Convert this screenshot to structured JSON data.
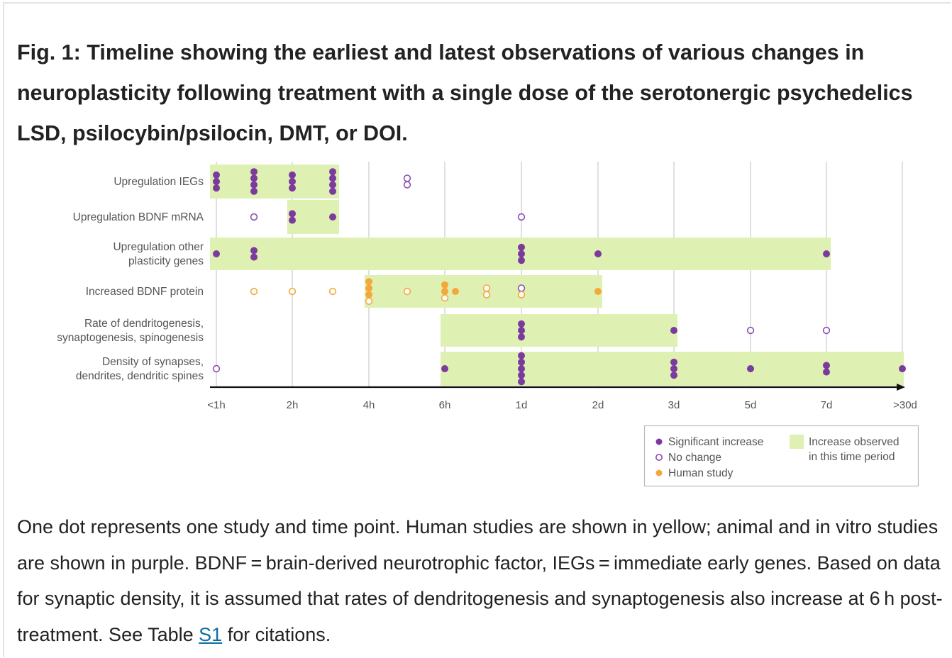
{
  "figure": {
    "title": "Fig. 1: Timeline showing the earliest and latest observations of various changes in neuroplasticity following treatment with a single dose of the serotonergic psychedelics LSD, psilocybin/psilocin, DMT, or DOI.",
    "caption_before_link": "One dot represents one study and time point. Human studies are shown in yellow; animal and in vitro studies are shown in purple. BDNF = brain-derived neurotrophic factor, IEGs = immediate early genes. Based on data for synaptic density, it is assumed that rates of dendritogenesis and synaptogenesis also increase at 6 h post-treatment. See Table ",
    "caption_link": "S1",
    "caption_after_link": " for citations."
  },
  "colors": {
    "significant": "#7b3a9e",
    "no_change": "#8a4fb5",
    "human": "#f5a83a",
    "band": "#def0b2",
    "grid": "#cccccc"
  },
  "chart_data": {
    "type": "scatter",
    "title": "",
    "xlabel": "",
    "ylabel": "",
    "x_ticks": [
      "<1h",
      "2h",
      "4h",
      "6h",
      "1d",
      "2d",
      "3d",
      "5d",
      "7d",
      ">30d"
    ],
    "rows": [
      {
        "label": [
          "Upregulation IEGs"
        ],
        "periods": [
          [
            "<1h",
            "3h"
          ]
        ],
        "points": [
          {
            "x": "<1h",
            "significant": 3
          },
          {
            "x": "1.5h",
            "significant": 4
          },
          {
            "x": "2h",
            "significant": 3
          },
          {
            "x": "3h",
            "significant": 4
          },
          {
            "x": "5h",
            "no_change": 2
          }
        ]
      },
      {
        "label": [
          "Upregulation BDNF mRNA"
        ],
        "periods": [
          [
            "2h",
            "3h"
          ]
        ],
        "points": [
          {
            "x": "1.5h",
            "no_change": 1
          },
          {
            "x": "2h",
            "significant": 2
          },
          {
            "x": "3h",
            "significant": 1
          },
          {
            "x": "1d",
            "no_change": 1
          }
        ]
      },
      {
        "label": [
          "Upregulation other",
          "plasticity genes"
        ],
        "periods": [
          [
            "<1h",
            "7d"
          ]
        ],
        "points": [
          {
            "x": "<1h",
            "significant": 1
          },
          {
            "x": "1.5h",
            "significant": 2
          },
          {
            "x": "1d",
            "significant": 3
          },
          {
            "x": "2d",
            "significant": 1
          },
          {
            "x": "7d",
            "significant": 1
          }
        ]
      },
      {
        "label": [
          "Increased BDNF protein"
        ],
        "periods": [
          [
            "4h",
            "2d"
          ]
        ],
        "points": [
          {
            "x": "1.5h",
            "human_no_change": 1
          },
          {
            "x": "2h",
            "human_no_change": 1
          },
          {
            "x": "3h",
            "human_no_change": 1
          },
          {
            "x": "4h",
            "human": 3,
            "human_no_change": 1
          },
          {
            "x": "5h",
            "human_no_change": 1
          },
          {
            "x": "6h",
            "human": 2,
            "human_no_change": 1
          },
          {
            "x": "7h",
            "human": 1
          },
          {
            "x": "10h",
            "human_no_change": 2
          },
          {
            "x": "1d",
            "no_change": 1,
            "human_no_change": 1
          },
          {
            "x": "2d",
            "human": 1
          }
        ]
      },
      {
        "label": [
          "Rate of dendritogenesis,",
          "synaptogenesis, spinogenesis"
        ],
        "periods": [
          [
            "6h",
            "3d"
          ]
        ],
        "points": [
          {
            "x": "1d",
            "significant": 3
          },
          {
            "x": "3d",
            "significant": 1
          },
          {
            "x": "5d",
            "no_change": 1
          },
          {
            "x": "7d",
            "no_change": 1
          }
        ]
      },
      {
        "label": [
          "Density of synapses,",
          "dendrites, dendritic spines"
        ],
        "periods": [
          [
            "6h",
            ">30d"
          ]
        ],
        "points": [
          {
            "x": "<1h",
            "no_change": 1
          },
          {
            "x": "6h",
            "significant": 1
          },
          {
            "x": "1d",
            "significant": 5
          },
          {
            "x": "3d",
            "significant": 3
          },
          {
            "x": "5d",
            "significant": 1
          },
          {
            "x": "7d",
            "significant": 2
          },
          {
            "x": ">30d",
            "significant": 1
          }
        ]
      }
    ],
    "legend": {
      "position": "bottom-right",
      "significant": "Significant increase",
      "no_change": "No change",
      "human": "Human study",
      "band": [
        "Increase observed",
        "in this time period"
      ]
    }
  }
}
